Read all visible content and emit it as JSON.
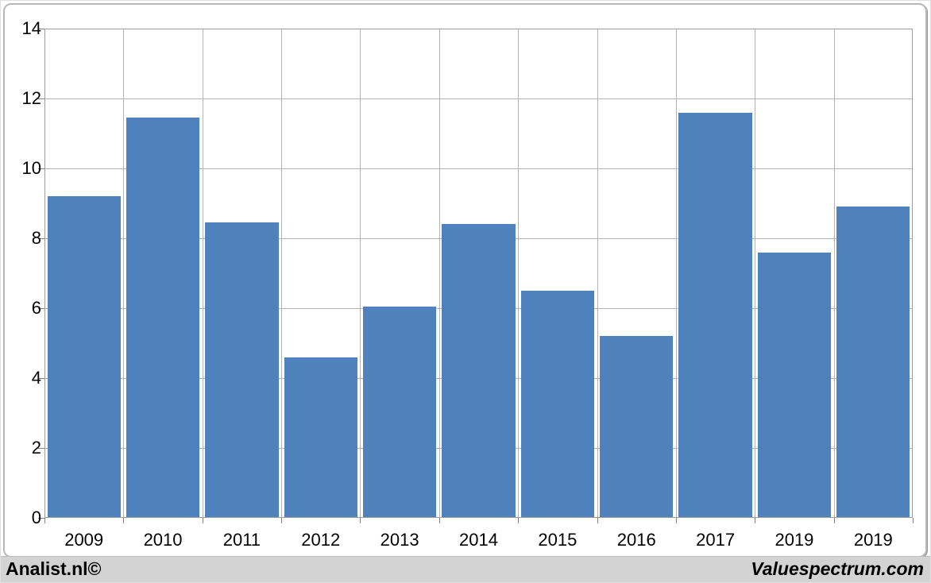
{
  "branding": {
    "left": "Analist.nl©",
    "right": "Valuespectrum.com"
  },
  "chart_data": {
    "type": "bar",
    "title": "",
    "xlabel": "",
    "ylabel": "",
    "categories": [
      "2009",
      "2010",
      "2011",
      "2012",
      "2013",
      "2014",
      "2015",
      "2016",
      "2017",
      "2019",
      "2019"
    ],
    "values": [
      9.2,
      11.45,
      8.45,
      4.6,
      6.05,
      8.4,
      6.5,
      5.2,
      11.6,
      7.6,
      8.9
    ],
    "ylim": [
      0,
      14
    ],
    "yticks": [
      0,
      2,
      4,
      6,
      8,
      10,
      12,
      14
    ],
    "grid": true,
    "legend": "none",
    "colors": {
      "bar": "#4f81bd",
      "gridline": "#b3b3b3",
      "plot_border": "#9d9d9d",
      "tick": "#808080",
      "footer_bg": "#d3d3d3",
      "frame_border": "#b9b9b9",
      "text": "#000000"
    }
  }
}
